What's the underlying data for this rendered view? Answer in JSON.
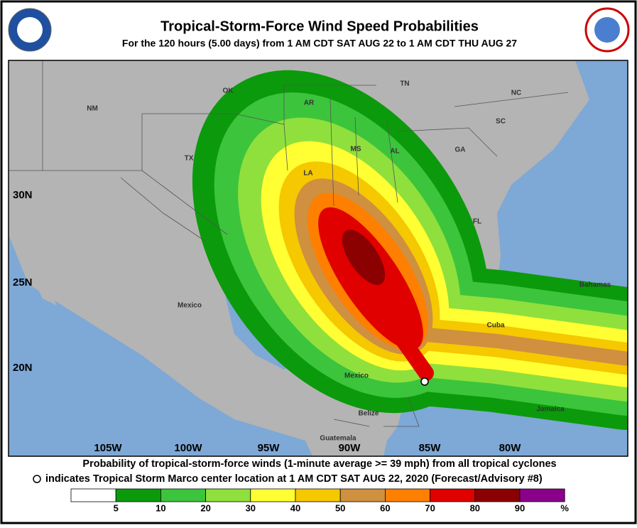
{
  "header": {
    "title": "Tropical-Storm-Force Wind Speed Probabilities",
    "subtitle": "For the 120 hours (5.00 days) from 1 AM CDT SAT AUG 22 to 1 AM CDT THU AUG 27"
  },
  "map": {
    "lat_labels": [
      "30N",
      "25N",
      "20N"
    ],
    "lon_labels": [
      "105W",
      "100W",
      "95W",
      "90W",
      "85W",
      "80W"
    ],
    "place_labels": [
      "NM",
      "OK",
      "AR",
      "TN",
      "NC",
      "SC",
      "GA",
      "AL",
      "MS",
      "LA",
      "TX",
      "FL",
      "Mexico",
      "Mexico",
      "Cuba",
      "Bahamas",
      "Jamaica",
      "Belize",
      "Guatemala"
    ]
  },
  "footer": {
    "line1": "Probability of tropical-storm-force winds (1-minute average >= 39 mph) from all tropical cyclones",
    "line2": "indicates Tropical Storm Marco center location at 1 AM CDT SAT AUG 22, 2020 (Forecast/Advisory #8)"
  },
  "legend": {
    "labels": [
      5,
      10,
      20,
      30,
      40,
      50,
      60,
      70,
      80,
      90
    ],
    "unit": "%",
    "colors": [
      "#ffffff",
      "#0b9a0b",
      "#3cc43c",
      "#8fe03c",
      "#ffff33",
      "#f5c800",
      "#cf9040",
      "#ff7f00",
      "#e00000",
      "#8b0000",
      "#8b008b"
    ]
  }
}
